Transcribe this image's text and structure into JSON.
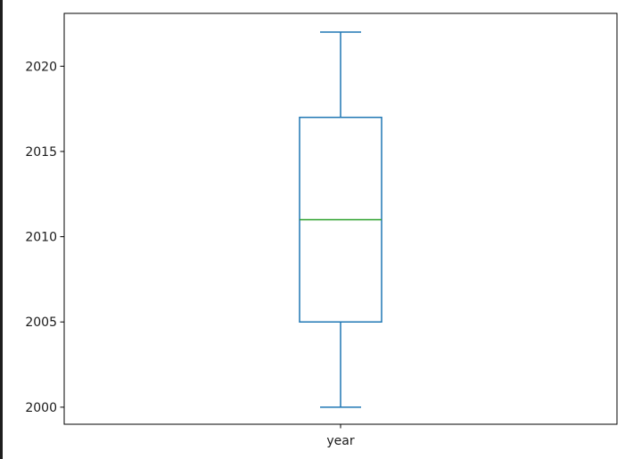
{
  "chart_data": {
    "type": "box",
    "categories": [
      "year"
    ],
    "series": [
      {
        "whisker_low": 2000,
        "q1": 2005,
        "median": 2011,
        "q3": 2017,
        "whisker_high": 2022
      }
    ],
    "title": "",
    "xlabel": "",
    "ylabel": "",
    "ylim": [
      1999,
      2023.1
    ],
    "yticks": [
      2000,
      2005,
      2010,
      2015,
      2020
    ],
    "grid": false,
    "colors": {
      "box": "#1f77b4",
      "median": "#2ca02c",
      "axis": "#000000",
      "background": "#ffffff",
      "frame_bg": "#1e1e1e"
    }
  }
}
